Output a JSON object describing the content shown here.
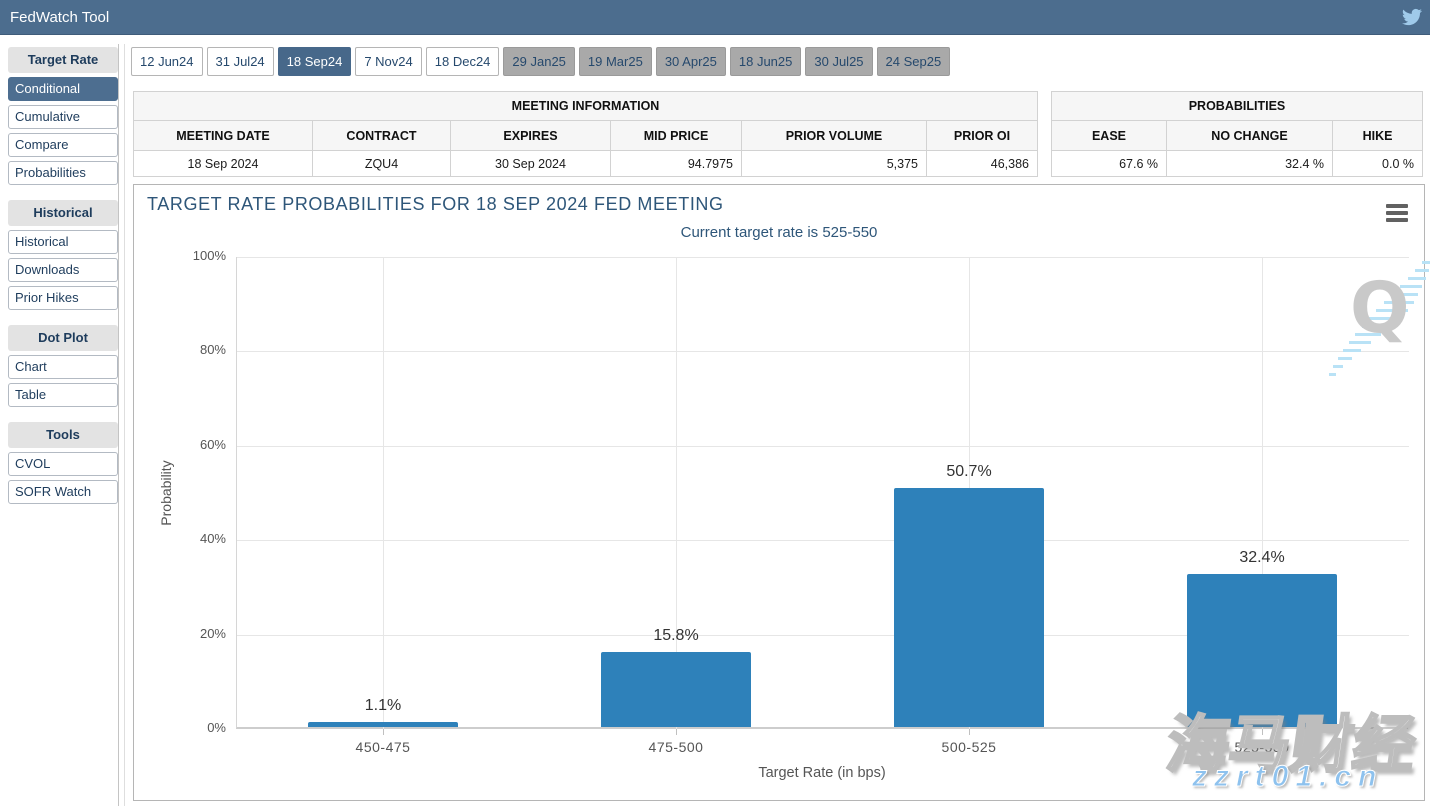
{
  "topbar": {
    "title": "FedWatch Tool",
    "twitter_icon": "twitter-bird",
    "bar_color": "#4c6d8e"
  },
  "sidebar": {
    "sections": [
      {
        "header": "Target Rate",
        "items": [
          {
            "label": "Conditional",
            "selected": true
          },
          {
            "label": "Cumulative"
          },
          {
            "label": "Compare"
          },
          {
            "label": "Probabilities"
          }
        ]
      },
      {
        "header": "Historical",
        "items": [
          {
            "label": "Historical"
          },
          {
            "label": "Downloads"
          },
          {
            "label": "Prior Hikes"
          }
        ]
      },
      {
        "header": "Dot Plot",
        "items": [
          {
            "label": "Chart"
          },
          {
            "label": "Table"
          }
        ]
      },
      {
        "header": "Tools",
        "items": [
          {
            "label": "CVOL"
          },
          {
            "label": "SOFR Watch"
          }
        ]
      }
    ]
  },
  "tabs": [
    {
      "label": "12 Jun24",
      "state": "normal"
    },
    {
      "label": "31 Jul24",
      "state": "normal"
    },
    {
      "label": "18 Sep24",
      "state": "selected"
    },
    {
      "label": "7 Nov24",
      "state": "normal"
    },
    {
      "label": "18 Dec24",
      "state": "normal"
    },
    {
      "label": "29 Jan25",
      "state": "disabled"
    },
    {
      "label": "19 Mar25",
      "state": "disabled"
    },
    {
      "label": "30 Apr25",
      "state": "disabled"
    },
    {
      "label": "18 Jun25",
      "state": "disabled"
    },
    {
      "label": "30 Jul25",
      "state": "disabled"
    },
    {
      "label": "24 Sep25",
      "state": "disabled"
    }
  ],
  "meeting_info": {
    "caption": "MEETING INFORMATION",
    "columns": [
      "MEETING DATE",
      "CONTRACT",
      "EXPIRES",
      "MID PRICE",
      "PRIOR VOLUME",
      "PRIOR OI"
    ],
    "row": [
      "18 Sep 2024",
      "ZQU4",
      "30 Sep 2024",
      "94.7975",
      "5,375",
      "46,386"
    ]
  },
  "probabilities": {
    "caption": "PROBABILITIES",
    "columns": [
      "EASE",
      "NO CHANGE",
      "HIKE"
    ],
    "row": [
      "67.6 %",
      "32.4 %",
      "0.0 %"
    ]
  },
  "chart_data": {
    "type": "bar",
    "title": "TARGET RATE PROBABILITIES FOR 18 SEP 2024 FED MEETING",
    "subtitle": "Current target rate is 525-550",
    "categories": [
      "450-475",
      "475-500",
      "500-525",
      "525-550"
    ],
    "values": [
      1.1,
      15.8,
      50.7,
      32.4
    ],
    "value_labels": [
      "1.1%",
      "15.8%",
      "50.7%",
      "32.4%"
    ],
    "xlabel": "Target Rate (in bps)",
    "ylabel": "Probability",
    "ylim": [
      0,
      100
    ],
    "yticks": [
      "100%",
      "80%",
      "60%",
      "40%",
      "20%",
      "0%"
    ],
    "bar_color": "#2e81ba",
    "grid": true,
    "legend": false,
    "menu_icon": "hamburger-menu",
    "logo_watermark": "Q"
  },
  "watermarks": {
    "brand": "海马财经",
    "site": "zzrt01.cn"
  }
}
